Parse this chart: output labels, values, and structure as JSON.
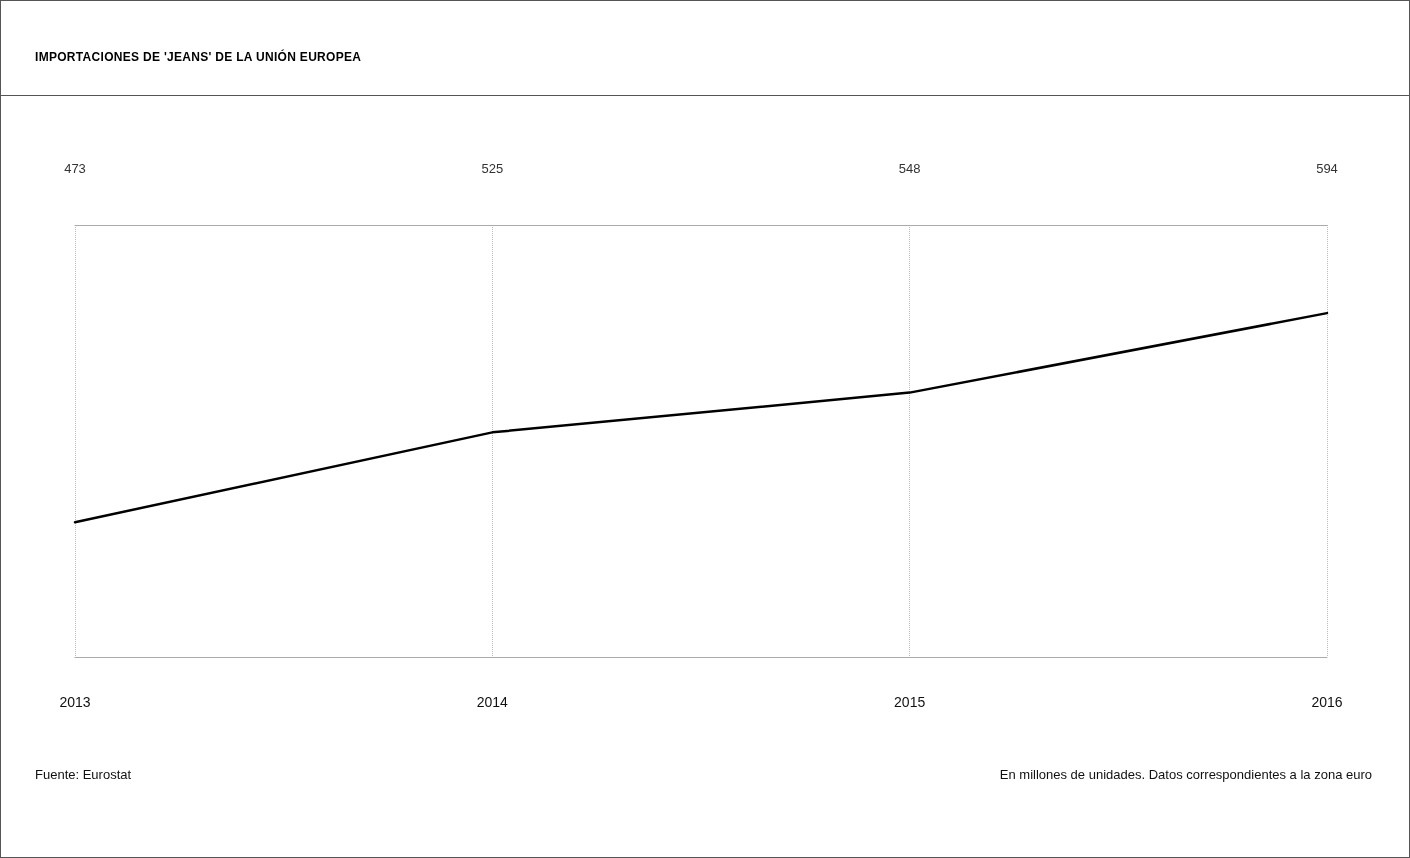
{
  "chart_data": {
    "type": "line",
    "title": "IMPORTACIONES DE 'JEANS' DE LA UNIÓN EUROPEA",
    "categories": [
      "2013",
      "2014",
      "2015",
      "2016"
    ],
    "series": [
      {
        "color": "#000000",
        "values": [
          473,
          525,
          548,
          594
        ]
      }
    ],
    "ylim": [
      395,
      645
    ],
    "data_labels": true,
    "grid": "x",
    "marker": "none",
    "line_style": "solid",
    "annotations": [
      "Fuente: Eurostat",
      "En millones de unidades. Datos correspondientes a la zona euro"
    ]
  }
}
